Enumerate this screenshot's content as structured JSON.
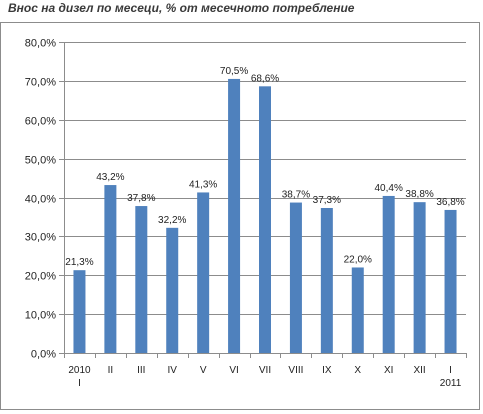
{
  "page": {
    "title": "Внос на дизел по месеци, % от месечното потребление"
  },
  "chart_data": {
    "type": "bar",
    "title": "",
    "xlabel": "",
    "ylabel": "",
    "categories": [
      [
        "2010",
        "I"
      ],
      [
        "II"
      ],
      [
        "III"
      ],
      [
        "IV"
      ],
      [
        "V"
      ],
      [
        "VI"
      ],
      [
        "VII"
      ],
      [
        "VIII"
      ],
      [
        "IX"
      ],
      [
        "X"
      ],
      [
        "XI"
      ],
      [
        "XII"
      ],
      [
        "I",
        "2011"
      ]
    ],
    "values": [
      21.3,
      43.2,
      37.8,
      32.2,
      41.3,
      70.5,
      68.6,
      38.7,
      37.3,
      22.0,
      40.4,
      38.8,
      36.8
    ],
    "data_labels": [
      "21,3%",
      "43,2%",
      "37,8%",
      "32,2%",
      "41,3%",
      "70,5%",
      "68,6%",
      "38,7%",
      "37,3%",
      "22,0%",
      "40,4%",
      "38,8%",
      "36,8%"
    ],
    "ylim": [
      0,
      80
    ],
    "yticks": [
      0,
      10,
      20,
      30,
      40,
      50,
      60,
      70,
      80
    ],
    "ytick_labels": [
      "0,0%",
      "10,0%",
      "20,0%",
      "30,0%",
      "40,0%",
      "50,0%",
      "60,0%",
      "70,0%",
      "80,0%"
    ],
    "grid": true,
    "legend": "none",
    "colors": {
      "bar": "#4f81bd",
      "grid": "#8c8c8c",
      "axis": "#8c8c8c"
    }
  }
}
